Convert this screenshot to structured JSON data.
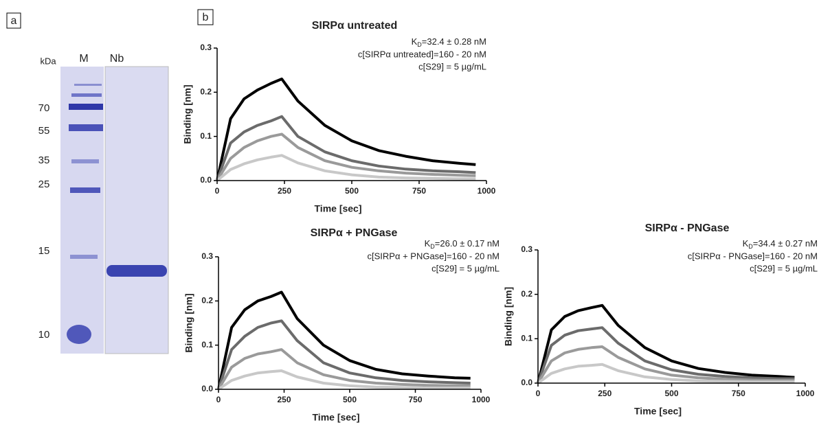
{
  "gel": {
    "panel": "a",
    "kda_label": "kDa",
    "lanes": [
      "M",
      "Nb"
    ],
    "markers": [
      "70",
      "55",
      "35",
      "25",
      "15",
      "10"
    ]
  },
  "panel_b": "b",
  "chart_data": [
    {
      "type": "line",
      "title": "SIRPα untreated",
      "annotation": {
        "kd_main": "K",
        "kd_sub": "D",
        "kd_rest": "=32.4 ± 0.28 nM",
        "line2": "c[SIRPα untreated]=160 - 20 nM",
        "line3": "c[S29] = 5 µg/mL"
      },
      "x_label": "Time [sec]",
      "y_label": "Binding [nm]",
      "x": [
        0,
        50,
        100,
        150,
        200,
        240,
        300,
        400,
        500,
        600,
        700,
        800,
        900,
        960
      ],
      "xlim": [
        0,
        1000
      ],
      "xticks": [
        0,
        250,
        500,
        750,
        1000
      ],
      "ylim": [
        0,
        0.3
      ],
      "yticks": [
        {
          "value": 0,
          "label": "0.0"
        },
        0.1,
        0.2,
        0.3
      ],
      "series": [
        {
          "color": "#000000",
          "values": [
            0,
            0.14,
            0.185,
            0.205,
            0.22,
            0.23,
            0.18,
            0.125,
            0.09,
            0.068,
            0.055,
            0.045,
            0.039,
            0.036
          ]
        },
        {
          "color": "#6b6b6b",
          "values": [
            0,
            0.085,
            0.11,
            0.125,
            0.135,
            0.145,
            0.1,
            0.065,
            0.045,
            0.033,
            0.026,
            0.022,
            0.02,
            0.018
          ]
        },
        {
          "color": "#9a9a9a",
          "values": [
            0,
            0.05,
            0.075,
            0.09,
            0.1,
            0.105,
            0.075,
            0.045,
            0.03,
            0.022,
            0.017,
            0.014,
            0.012,
            0.011
          ]
        },
        {
          "color": "#c8c8c8",
          "values": [
            0,
            0.025,
            0.038,
            0.047,
            0.053,
            0.057,
            0.04,
            0.022,
            0.013,
            0.008,
            0.006,
            0.005,
            0.004,
            0.004
          ]
        }
      ]
    },
    {
      "type": "line",
      "title": "SIRPα +  PNGase",
      "annotation": {
        "kd_main": "K",
        "kd_sub": "D",
        "kd_rest": "=26.0 ± 0.17 nM",
        "line2": "c[SIRPα + PNGase]=160 - 20 nM",
        "line3": "c[S29] = 5 µg/mL"
      },
      "x_label": "Time [sec]",
      "y_label": "Binding [nm]",
      "x": [
        0,
        50,
        100,
        150,
        200,
        240,
        300,
        400,
        500,
        600,
        700,
        800,
        900,
        960
      ],
      "xlim": [
        0,
        1000
      ],
      "xticks": [
        0,
        250,
        500,
        750,
        1000
      ],
      "ylim": [
        0,
        0.3
      ],
      "yticks": [
        {
          "value": 0,
          "label": "0.0"
        },
        0.1,
        0.2,
        0.3
      ],
      "series": [
        {
          "color": "#000000",
          "values": [
            0,
            0.14,
            0.18,
            0.2,
            0.21,
            0.22,
            0.16,
            0.1,
            0.065,
            0.045,
            0.035,
            0.03,
            0.026,
            0.025
          ]
        },
        {
          "color": "#6b6b6b",
          "values": [
            0,
            0.09,
            0.12,
            0.14,
            0.15,
            0.155,
            0.11,
            0.06,
            0.037,
            0.026,
            0.02,
            0.017,
            0.015,
            0.014
          ]
        },
        {
          "color": "#9a9a9a",
          "values": [
            0,
            0.05,
            0.07,
            0.08,
            0.085,
            0.09,
            0.06,
            0.033,
            0.02,
            0.014,
            0.011,
            0.009,
            0.008,
            0.008
          ]
        },
        {
          "color": "#c8c8c8",
          "values": [
            0,
            0.02,
            0.03,
            0.037,
            0.04,
            0.042,
            0.028,
            0.014,
            0.008,
            0.005,
            0.004,
            0.003,
            0.003,
            0.003
          ]
        }
      ]
    },
    {
      "type": "line",
      "title": "SIRPα -  PNGase",
      "annotation": {
        "kd_main": "K",
        "kd_sub": "D",
        "kd_rest": "=34.4 ± 0.27 nM",
        "line2": "c[SIRPα - PNGase]=160 - 20 nM",
        "line3": "c[S29] = 5 µg/mL"
      },
      "x_label": "Time [sec]",
      "y_label": "Binding [nm]",
      "x": [
        0,
        50,
        100,
        150,
        200,
        240,
        300,
        400,
        500,
        600,
        700,
        800,
        900,
        960
      ],
      "xlim": [
        0,
        1000
      ],
      "xticks": [
        0,
        250,
        500,
        750,
        1000
      ],
      "ylim": [
        0,
        0.3
      ],
      "yticks": [
        {
          "value": 0,
          "label": "0.0"
        },
        0.1,
        0.2,
        0.3
      ],
      "series": [
        {
          "color": "#000000",
          "values": [
            0,
            0.12,
            0.15,
            0.163,
            0.17,
            0.175,
            0.13,
            0.08,
            0.05,
            0.033,
            0.024,
            0.018,
            0.015,
            0.013
          ]
        },
        {
          "color": "#6b6b6b",
          "values": [
            0,
            0.085,
            0.108,
            0.118,
            0.122,
            0.125,
            0.09,
            0.05,
            0.03,
            0.02,
            0.015,
            0.012,
            0.01,
            0.01
          ]
        },
        {
          "color": "#9a9a9a",
          "values": [
            0,
            0.05,
            0.068,
            0.076,
            0.08,
            0.082,
            0.058,
            0.032,
            0.018,
            0.012,
            0.009,
            0.007,
            0.006,
            0.006
          ]
        },
        {
          "color": "#c8c8c8",
          "values": [
            0,
            0.022,
            0.032,
            0.038,
            0.04,
            0.042,
            0.028,
            0.014,
            0.008,
            0.005,
            0.004,
            0.003,
            0.003,
            0.003
          ]
        }
      ]
    }
  ]
}
